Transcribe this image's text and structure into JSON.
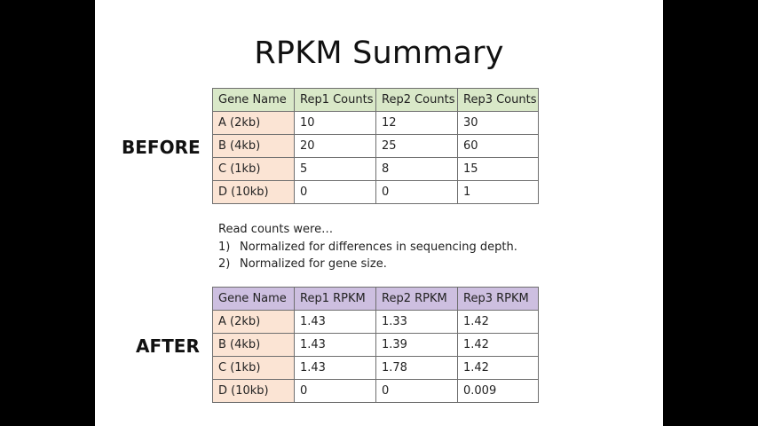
{
  "title": "RPKM Summary",
  "before_label": "BEFORE",
  "after_label": "AFTER",
  "before_table": {
    "headers": [
      "Gene Name",
      "Rep1 Counts",
      "Rep2 Counts",
      "Rep3 Counts"
    ],
    "rows": [
      [
        "A (2kb)",
        "10",
        "12",
        "30"
      ],
      [
        "B (4kb)",
        "20",
        "25",
        "60"
      ],
      [
        "C (1kb)",
        "5",
        "8",
        "15"
      ],
      [
        "D (10kb)",
        "0",
        "0",
        "1"
      ]
    ]
  },
  "notes": {
    "intro": "Read counts were…",
    "items": [
      {
        "num": "1)",
        "text": "Normalized for differences in sequencing depth."
      },
      {
        "num": "2)",
        "text": "Normalized for gene size."
      }
    ]
  },
  "after_table": {
    "headers": [
      "Gene Name",
      "Rep1 RPKM",
      "Rep2 RPKM",
      "Rep3 RPKM"
    ],
    "rows": [
      [
        "A (2kb)",
        "1.43",
        "1.33",
        "1.42"
      ],
      [
        "B (4kb)",
        "1.43",
        "1.39",
        "1.42"
      ],
      [
        "C (1kb)",
        "1.43",
        "1.78",
        "1.42"
      ],
      [
        "D (10kb)",
        "0",
        "0",
        "0.009"
      ]
    ]
  },
  "colors": {
    "before_header_bg": "#d9e8c8",
    "after_header_bg": "#cdbfe0",
    "gene_column_bg": "#fbe4d4"
  }
}
